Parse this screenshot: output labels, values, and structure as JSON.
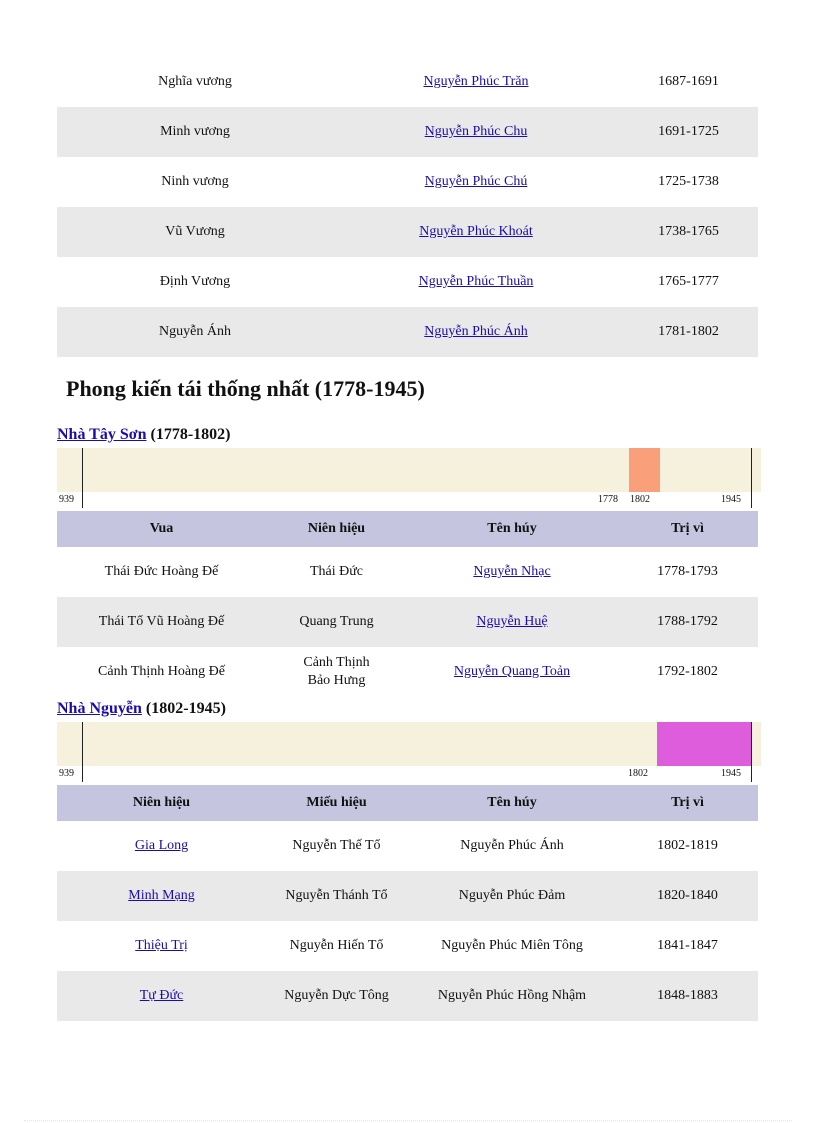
{
  "lords_table": {
    "rows": [
      {
        "title": "Nghĩa vương",
        "name": "Nguyễn  Phúc Trăn",
        "years": "1687-1691"
      },
      {
        "title": "Minh vương",
        "name": "Nguyễn  Phúc Chu",
        "years": "1691-1725"
      },
      {
        "title": "Ninh vương",
        "name": "Nguyễn  Phúc Chú",
        "years": "1725-1738"
      },
      {
        "title": "Vũ Vương",
        "name": "Nguyễn  Phúc Khoát",
        "years": "1738-1765"
      },
      {
        "title": "Định  Vương",
        "name": "Nguyễn  Phúc Thuần",
        "years": "1765-1777"
      },
      {
        "title": "Nguyễn  Ánh",
        "name": "Nguyễn  Phúc Ánh",
        "years": "1781-1802"
      }
    ]
  },
  "section_title": "Phong kiến tái thống nhất (1778-1945)",
  "tayson": {
    "heading_link": "Nhà Tây Sơn",
    "heading_years": "(1778-1802)",
    "timeline": {
      "start": "939",
      "period_start": "1778",
      "period_end": "1802",
      "end": "1945",
      "period_color": "#f9a07a"
    },
    "headers": [
      "Vua",
      "Niên hiệu",
      "Tên húy",
      "Trị vì"
    ],
    "rows": [
      {
        "king": "Thái  Đức Hoàng Đế",
        "era": "Thái  Đức",
        "name": "Nguyễn  Nhạc",
        "years": "1778-1793"
      },
      {
        "king": "Thái  Tổ Vũ Hoàng Đế",
        "era": "Quang Trung",
        "name": "Nguyễn  Huệ",
        "years": "1788-1792"
      },
      {
        "king": "Cảnh Thịnh  Hoàng Đế",
        "era_line1": "Cảnh Thịnh",
        "era_line2": "Bảo Hưng",
        "name": "Nguyễn  Quang Toản",
        "years": "1792-1802"
      }
    ]
  },
  "nguyen": {
    "heading_link": "Nhà Nguyễn",
    "heading_years": "(1802-1945)",
    "timeline": {
      "start": "939",
      "period_start": "1802",
      "end": "1945",
      "period_color": "#dd5ddd"
    },
    "headers": [
      "Niên hiệu",
      "Miếu hiệu",
      "Tên húy",
      "Trị vì"
    ],
    "rows": [
      {
        "era": "Gia Long",
        "temple": "Nguyễn  Thế  Tổ",
        "name": "Nguyễn  Phúc Ánh",
        "years": "1802-1819"
      },
      {
        "era": "Minh  Mạng",
        "temple": "Nguyễn  Thánh  Tổ",
        "name": "Nguyễn  Phúc Đảm",
        "years": "1820-1840"
      },
      {
        "era": "Thiệu  Trị",
        "temple": "Nguyễn  Hiến  Tổ",
        "name": "Nguyễn  Phúc Miên Tông",
        "years": "1841-1847"
      },
      {
        "era": "Tự Đức",
        "temple": "Nguyễn  Dực Tông",
        "name": "Nguyễn  Phúc Hồng Nhậm",
        "years": "1848-1883"
      }
    ]
  }
}
